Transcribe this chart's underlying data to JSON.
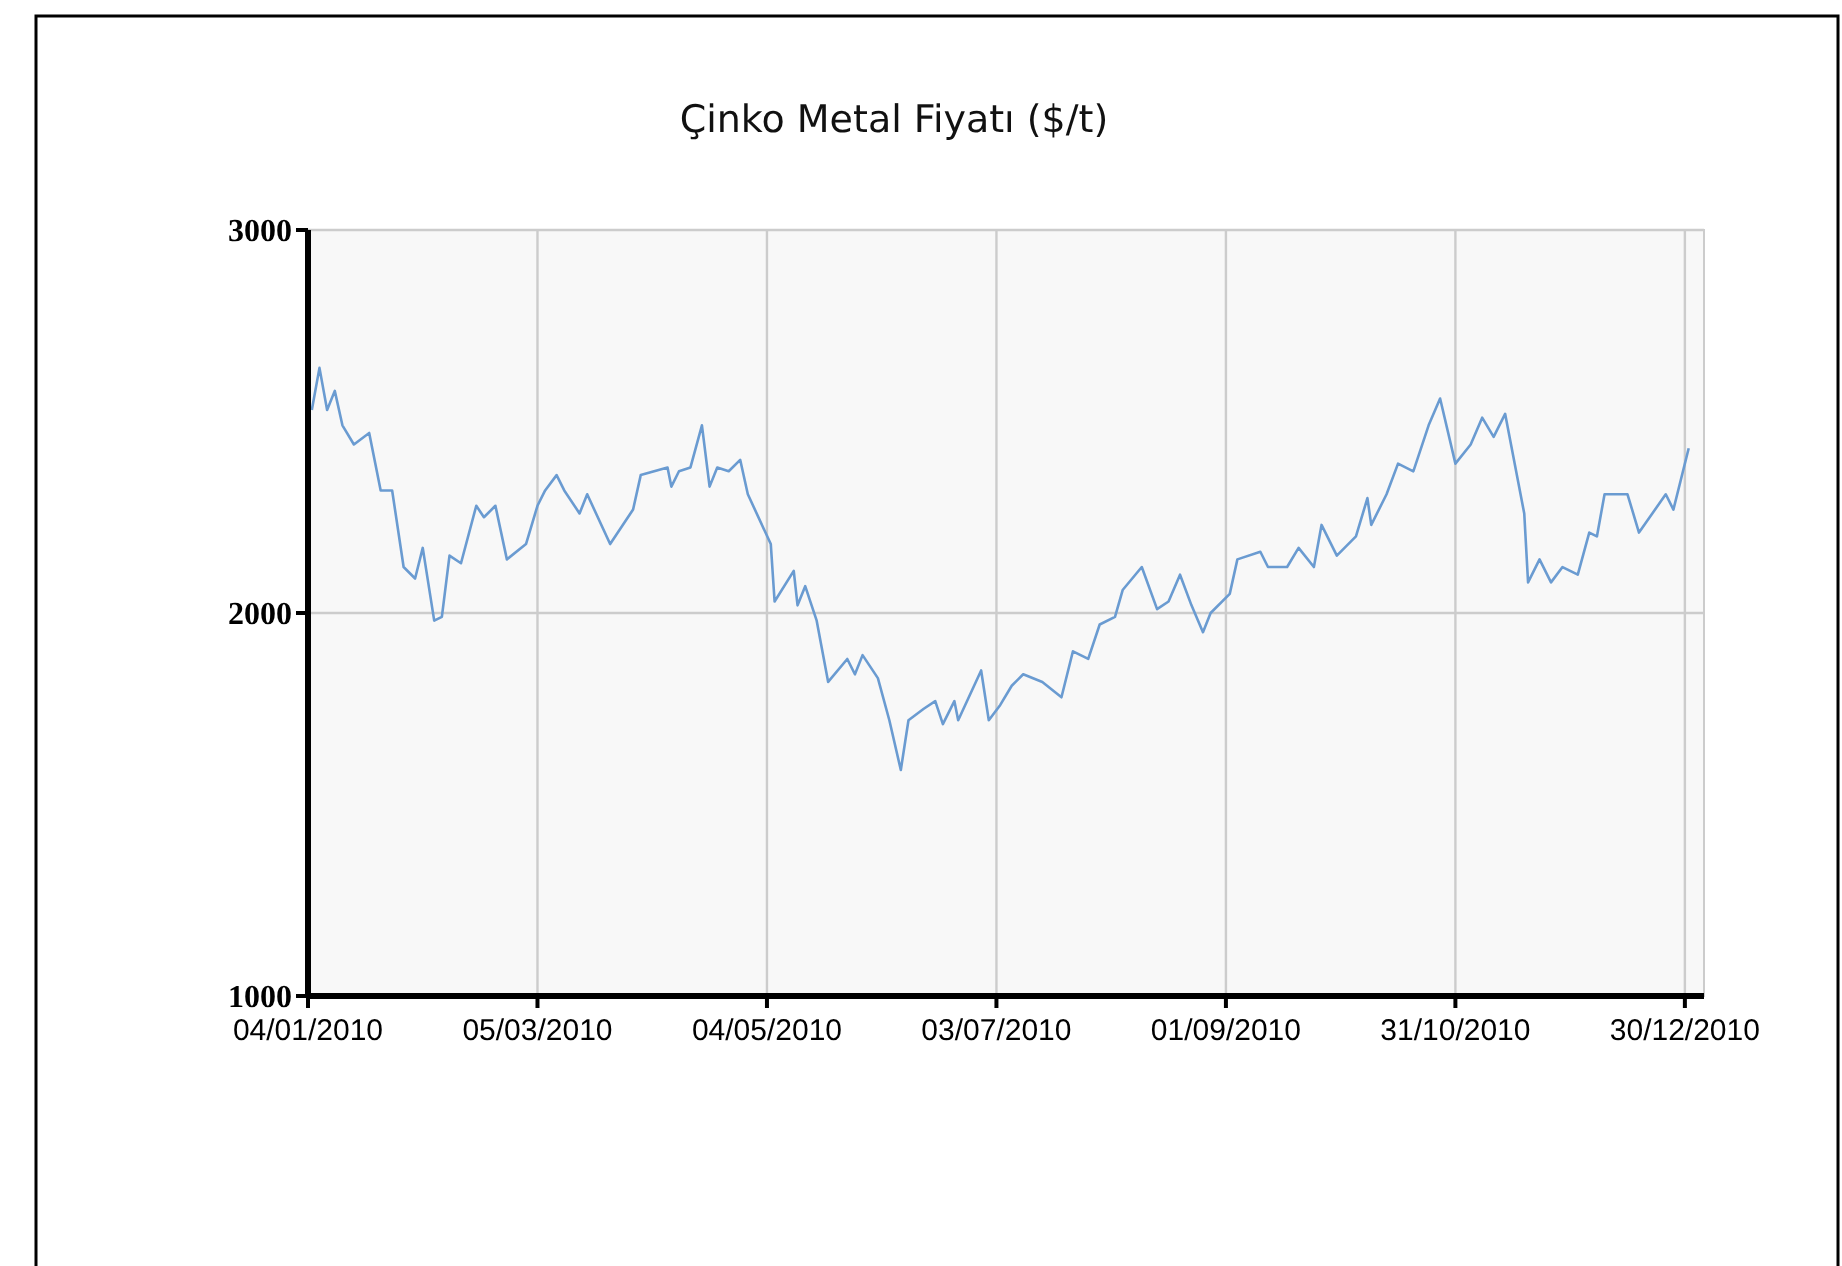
{
  "chart_data": {
    "type": "line",
    "title": "Çinko Metal Fiyatı ($/t)",
    "x": [
      "2010-01-05",
      "2010-01-07",
      "2010-01-09",
      "2010-01-11",
      "2010-01-13",
      "2010-01-16",
      "2010-01-20",
      "2010-01-23",
      "2010-01-26",
      "2010-01-29",
      "2010-02-01",
      "2010-02-03",
      "2010-02-06",
      "2010-02-08",
      "2010-02-10",
      "2010-02-13",
      "2010-02-17",
      "2010-02-19",
      "2010-02-22",
      "2010-02-25",
      "2010-03-02",
      "2010-03-05",
      "2010-03-07",
      "2010-03-10",
      "2010-03-12",
      "2010-03-16",
      "2010-03-18",
      "2010-03-24",
      "2010-03-30",
      "2010-04-01",
      "2010-04-08",
      "2010-04-09",
      "2010-04-11",
      "2010-04-14",
      "2010-04-17",
      "2010-04-19",
      "2010-04-21",
      "2010-04-24",
      "2010-04-27",
      "2010-04-29",
      "2010-05-05",
      "2010-05-06",
      "2010-05-11",
      "2010-05-12",
      "2010-05-14",
      "2010-05-17",
      "2010-05-20",
      "2010-05-25",
      "2010-05-27",
      "2010-05-29",
      "2010-06-02",
      "2010-06-05",
      "2010-06-08",
      "2010-06-10",
      "2010-06-14",
      "2010-06-17",
      "2010-06-19",
      "2010-06-22",
      "2010-06-23",
      "2010-06-29",
      "2010-07-01",
      "2010-07-04",
      "2010-07-07",
      "2010-07-10",
      "2010-07-15",
      "2010-07-20",
      "2010-07-23",
      "2010-07-27",
      "2010-07-30",
      "2010-08-03",
      "2010-08-05",
      "2010-08-10",
      "2010-08-14",
      "2010-08-17",
      "2010-08-20",
      "2010-08-23",
      "2010-08-26",
      "2010-08-28",
      "2010-09-02",
      "2010-09-04",
      "2010-09-10",
      "2010-09-12",
      "2010-09-17",
      "2010-09-20",
      "2010-09-24",
      "2010-09-26",
      "2010-09-30",
      "2010-10-05",
      "2010-10-08",
      "2010-10-09",
      "2010-10-13",
      "2010-10-16",
      "2010-10-20",
      "2010-10-24",
      "2010-10-27",
      "2010-10-31",
      "2010-11-04",
      "2010-11-07",
      "2010-11-10",
      "2010-11-13",
      "2010-11-18",
      "2010-11-19",
      "2010-11-22",
      "2010-11-25",
      "2010-11-28",
      "2010-12-02",
      "2010-12-05",
      "2010-12-07",
      "2010-12-09",
      "2010-12-15",
      "2010-12-18",
      "2010-12-25",
      "2010-12-27",
      "2010-12-31"
    ],
    "series": [
      {
        "color": "#6a9bd1",
        "values": [
          2530,
          2640,
          2530,
          2580,
          2490,
          2440,
          2470,
          2320,
          2320,
          2120,
          2090,
          2170,
          1980,
          1990,
          2150,
          2130,
          2280,
          2250,
          2280,
          2140,
          2180,
          2280,
          2320,
          2360,
          2320,
          2260,
          2310,
          2180,
          2270,
          2360,
          2380,
          2330,
          2370,
          2380,
          2490,
          2330,
          2380,
          2370,
          2400,
          2310,
          2180,
          2030,
          2110,
          2020,
          2070,
          1980,
          1820,
          1880,
          1840,
          1890,
          1830,
          1720,
          1590,
          1720,
          1750,
          1770,
          1710,
          1770,
          1720,
          1850,
          1720,
          1760,
          1810,
          1840,
          1820,
          1780,
          1900,
          1880,
          1970,
          1990,
          2060,
          2120,
          2010,
          2030,
          2100,
          2020,
          1950,
          2000,
          2050,
          2140,
          2160,
          2120,
          2120,
          2170,
          2120,
          2230,
          2150,
          2200,
          2300,
          2230,
          2310,
          2390,
          2370,
          2490,
          2560,
          2390,
          2440,
          2510,
          2460,
          2520,
          2260,
          2080,
          2140,
          2080,
          2120,
          2100,
          2210,
          2200,
          2310,
          2310,
          2210,
          2310,
          2270,
          2430
        ]
      }
    ],
    "xlim": [
      "2010-01-04",
      "2011-01-04"
    ],
    "xticks": [
      {
        "value": "2010-01-04",
        "label": "04/01/2010"
      },
      {
        "value": "2010-03-05",
        "label": "05/03/2010"
      },
      {
        "value": "2010-05-04",
        "label": "04/05/2010"
      },
      {
        "value": "2010-07-03",
        "label": "03/07/2010"
      },
      {
        "value": "2010-09-01",
        "label": "01/09/2010"
      },
      {
        "value": "2010-10-31",
        "label": "31/10/2010"
      },
      {
        "value": "2010-12-30",
        "label": "30/12/2010"
      }
    ],
    "ylim": [
      1000,
      3000
    ],
    "yticks": [
      1000,
      2000,
      3000
    ],
    "grid": true,
    "line_style": "solid",
    "marker": "none"
  }
}
